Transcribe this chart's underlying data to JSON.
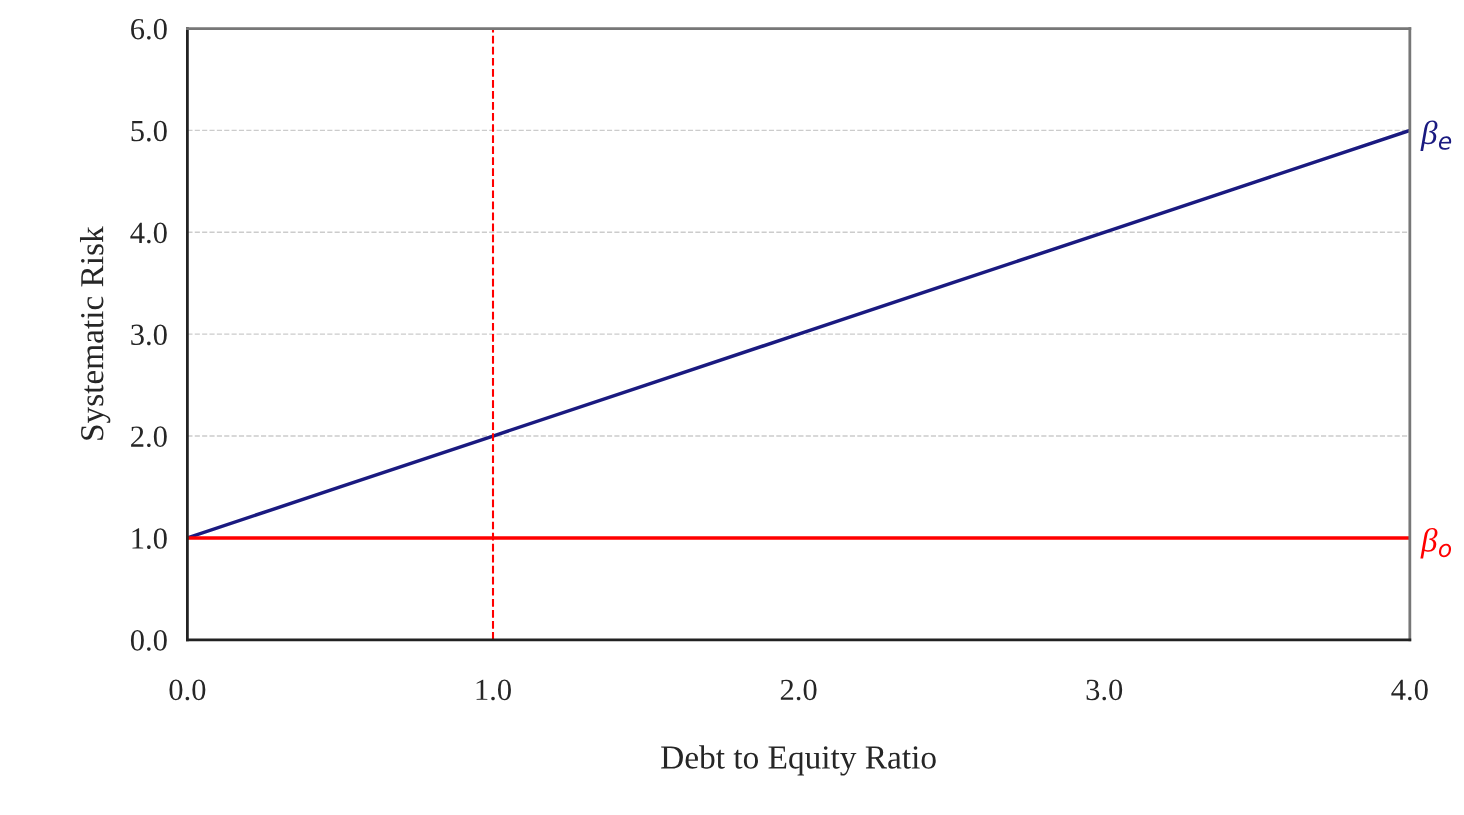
{
  "chart_data": {
    "type": "line",
    "xlabel": "Debt to Equity Ratio",
    "ylabel": "Systematic Risk",
    "x": [
      0.0,
      0.5,
      1.0,
      1.5,
      2.0,
      2.5,
      3.0,
      3.5,
      4.0
    ],
    "series": [
      {
        "name": "β$_{e}$",
        "color": "#1a1a80",
        "values": [
          1.0,
          1.5,
          2.0,
          2.5,
          3.0,
          3.5,
          4.0,
          4.5,
          5.0
        ]
      },
      {
        "name": "β$_{o}$",
        "color": "#ff0000",
        "values": [
          1.0,
          1.0,
          1.0,
          1.0,
          1.0,
          1.0,
          1.0,
          1.0,
          1.0
        ]
      }
    ],
    "ref_lines": [
      {
        "axis": "x",
        "value": 1.0,
        "color": "#ff0000",
        "line_style": "dashed"
      }
    ],
    "xlim": [
      0.0,
      4.0
    ],
    "ylim": [
      0.0,
      6.0
    ],
    "xticks": [
      {
        "value": 0,
        "label": "0.0"
      },
      {
        "value": 1,
        "label": "1.0"
      },
      {
        "value": 2,
        "label": "2.0"
      },
      {
        "value": 3,
        "label": "3.0"
      },
      {
        "value": 4,
        "label": "4.0"
      }
    ],
    "yticks": [
      {
        "value": 0,
        "label": "0.0"
      },
      {
        "value": 1,
        "label": "1.0"
      },
      {
        "value": 2,
        "label": "2.0"
      },
      {
        "value": 3,
        "label": "3.0"
      },
      {
        "value": 4,
        "label": "4.0"
      },
      {
        "value": 5,
        "label": "5.0"
      },
      {
        "value": 6,
        "label": "6.0"
      }
    ],
    "grid": "y",
    "legend": false,
    "marker": "none",
    "line_style": "solid"
  }
}
